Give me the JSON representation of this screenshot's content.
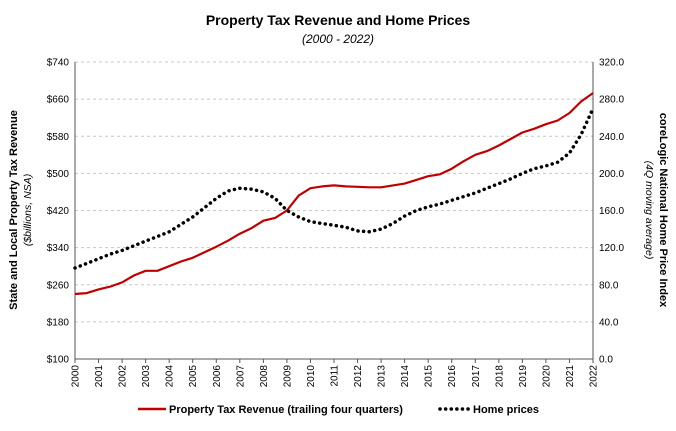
{
  "chart_data": {
    "type": "line",
    "title": "Property Tax Revenue and Home Prices",
    "subtitle": "(2000 - 2022)",
    "ylabel_left": "State and Local Property Tax Revenue",
    "ylabel_left_sub": "($billions, NSA)",
    "ylabel_right": "coreLogic National Home Price Index",
    "ylabel_right_sub": "(4Q moving average)",
    "x_categories": [
      "2000",
      "2001",
      "2002",
      "2003",
      "2004",
      "2005",
      "2006",
      "2007",
      "2008",
      "2009",
      "2010",
      "2011",
      "2012",
      "2013",
      "2014",
      "2015",
      "2016",
      "2017",
      "2018",
      "2019",
      "2020",
      "2021",
      "2022"
    ],
    "y_left": {
      "range": [
        100,
        740
      ],
      "ticks": [
        "$100",
        "$180",
        "$260",
        "$340",
        "$420",
        "$500",
        "$580",
        "$660",
        "$740"
      ]
    },
    "y_right": {
      "range": [
        0,
        320
      ],
      "ticks": [
        "0.0",
        "40.0",
        "80.0",
        "120.0",
        "160.0",
        "200.0",
        "240.0",
        "280.0",
        "320.0"
      ]
    },
    "grid": true,
    "legend_position": "bottom",
    "series": [
      {
        "name": "Property Tax Revenue (trailing four quarters)",
        "axis": "left",
        "color": "#c00000",
        "style": "solid",
        "x": [
          2000.0,
          2000.5,
          2001.0,
          2001.5,
          2002.0,
          2002.5,
          2003.0,
          2003.5,
          2004.0,
          2004.5,
          2005.0,
          2005.5,
          2006.0,
          2006.5,
          2007.0,
          2007.5,
          2008.0,
          2008.5,
          2009.0,
          2009.5,
          2010.0,
          2010.5,
          2011.0,
          2011.5,
          2012.0,
          2012.5,
          2013.0,
          2013.5,
          2014.0,
          2014.5,
          2015.0,
          2015.5,
          2016.0,
          2016.5,
          2017.0,
          2017.5,
          2018.0,
          2018.5,
          2019.0,
          2019.5,
          2020.0,
          2020.5,
          2021.0,
          2021.5,
          2022.0
        ],
        "y": [
          240,
          242,
          250,
          256,
          265,
          280,
          290,
          290,
          300,
          310,
          318,
          330,
          342,
          355,
          370,
          382,
          398,
          404,
          420,
          452,
          468,
          472,
          474,
          472,
          471,
          470,
          470,
          474,
          478,
          486,
          494,
          498,
          510,
          526,
          540,
          548,
          560,
          574,
          588,
          596,
          606,
          614,
          630,
          655,
          673
        ]
      },
      {
        "name": "Home prices",
        "axis": "right",
        "color": "#000000",
        "style": "dotted",
        "x": [
          2000.0,
          2000.5,
          2001.0,
          2001.5,
          2002.0,
          2002.5,
          2003.0,
          2003.5,
          2004.0,
          2004.5,
          2005.0,
          2005.5,
          2006.0,
          2006.5,
          2007.0,
          2007.5,
          2008.0,
          2008.5,
          2009.0,
          2009.5,
          2010.0,
          2010.5,
          2011.0,
          2011.5,
          2012.0,
          2012.5,
          2013.0,
          2013.5,
          2014.0,
          2014.5,
          2015.0,
          2015.5,
          2016.0,
          2016.5,
          2017.0,
          2017.5,
          2018.0,
          2018.5,
          2019.0,
          2019.5,
          2020.0,
          2020.5,
          2021.0,
          2021.5,
          2022.0
        ],
        "y": [
          98,
          103,
          108,
          113,
          117,
          122,
          127,
          132,
          137,
          145,
          153,
          163,
          173,
          181,
          184,
          183,
          180,
          173,
          160,
          153,
          148,
          146,
          144,
          142,
          138,
          137,
          140,
          146,
          154,
          160,
          164,
          167,
          171,
          175,
          179,
          184,
          189,
          194,
          200,
          205,
          208,
          212,
          222,
          242,
          270
        ]
      }
    ]
  }
}
